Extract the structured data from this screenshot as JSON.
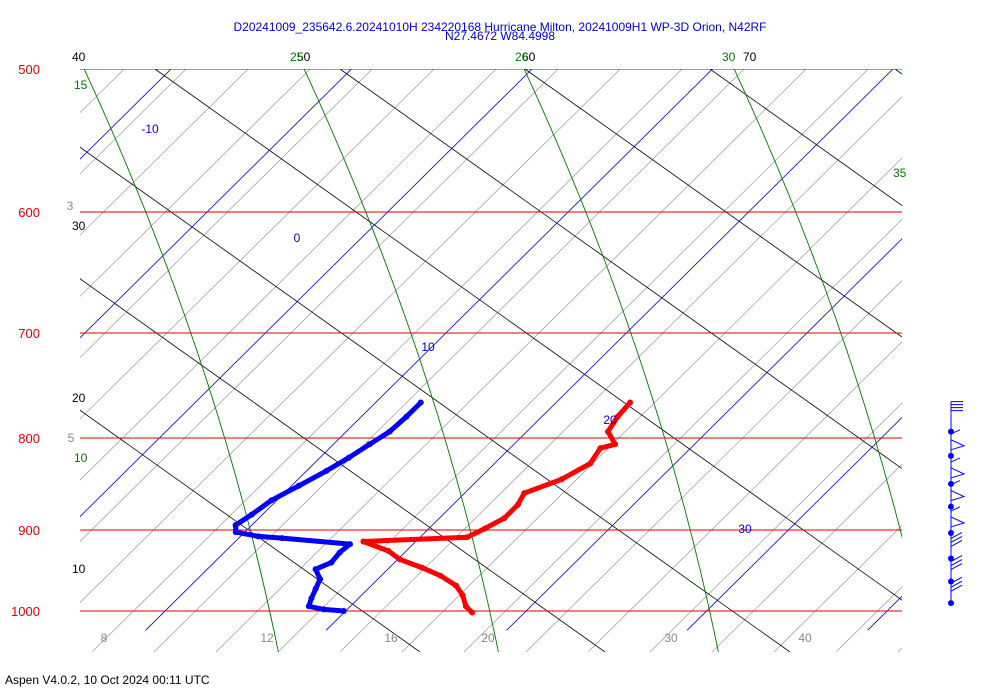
{
  "title_line1": "D20241009_235642.6.20241010H 234220168 Hurricane Milton, 20241009H1 WP-3D Orion, N42RF",
  "title_line2": "N27.4672 W84.4998",
  "footer": "Aspen V4.0.2, 10 Oct 2024  00:11 UTC",
  "colors": {
    "isobar": "#dd0000",
    "isotherm": "#0000cc",
    "mixing_ratio": "#888888",
    "dry_adiabat": "#000000",
    "moist_adiabat": "#007700",
    "temperature": "#ff0000",
    "dewpoint": "#0000ff",
    "wind_barb": "#0000ff"
  },
  "chart_data": {
    "type": "skew-t",
    "pressure_levels": [
      "500",
      "600",
      "700",
      "800",
      "900",
      "1000"
    ],
    "isotherm_labels": [
      "-10",
      "0",
      "10",
      "20",
      "30"
    ],
    "mixing_ratio_labels": [
      "8",
      "12",
      "16",
      "20",
      "30",
      "40",
      "3",
      "5"
    ],
    "dry_adiabat_labels": [
      "40",
      "30",
      "20",
      "10",
      "50",
      "60",
      "70"
    ],
    "moist_adiabat_labels": [
      "15",
      "10",
      "25",
      "26",
      "30",
      "35"
    ],
    "temperature_profile": [
      [
        766,
        24.1
      ],
      [
        780,
        24.2
      ],
      [
        795,
        24.5
      ],
      [
        808,
        25.6
      ],
      [
        812,
        25.0
      ],
      [
        828,
        25.3
      ],
      [
        845,
        24.6
      ],
      [
        860,
        23.3
      ],
      [
        873,
        23.6
      ],
      [
        888,
        23.6
      ],
      [
        900,
        23.1
      ],
      [
        910,
        22.6
      ],
      [
        915,
        17.1
      ],
      [
        926,
        19.0
      ],
      [
        936,
        20.1
      ],
      [
        946,
        21.8
      ],
      [
        956,
        23.3
      ],
      [
        968,
        24.7
      ],
      [
        980,
        25.6
      ],
      [
        994,
        26.4
      ],
      [
        1002,
        27.1
      ]
    ],
    "dewpoint_profile": [
      [
        766,
        12.5
      ],
      [
        780,
        12.5
      ],
      [
        795,
        12.4
      ],
      [
        808,
        12.0
      ],
      [
        822,
        11.6
      ],
      [
        836,
        11.1
      ],
      [
        852,
        10.4
      ],
      [
        868,
        9.7
      ],
      [
        884,
        9.4
      ],
      [
        896,
        9.1
      ],
      [
        904,
        9.5
      ],
      [
        909,
        11.0
      ],
      [
        911,
        12.4
      ],
      [
        918,
        16.5
      ],
      [
        928,
        16.4
      ],
      [
        940,
        16.5
      ],
      [
        948,
        16.0
      ],
      [
        960,
        16.8
      ],
      [
        972,
        17.1
      ],
      [
        984,
        17.4
      ],
      [
        994,
        17.7
      ],
      [
        998,
        18.7
      ],
      [
        1000,
        19.9
      ]
    ],
    "wind_barbs": [
      {
        "pressure": 795,
        "kind": "flags"
      },
      {
        "pressure": 820,
        "kind": "pennant"
      },
      {
        "pressure": 850,
        "kind": "pennant"
      },
      {
        "pressure": 875,
        "kind": "pennant"
      },
      {
        "pressure": 905,
        "kind": "pennant"
      },
      {
        "pressure": 935,
        "kind": "barb"
      },
      {
        "pressure": 963,
        "kind": "barb"
      },
      {
        "pressure": 990,
        "kind": "barb"
      }
    ],
    "ylim": [
      1020,
      500
    ],
    "grid": true
  }
}
